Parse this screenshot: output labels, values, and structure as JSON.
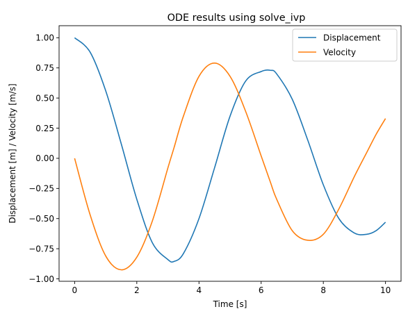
{
  "chart_data": {
    "type": "line",
    "title": "ODE results using solve_ivp",
    "xlabel": "Time [s]",
    "ylabel": "Displacement [m] / Velocity [m/s]",
    "xlim": [
      -0.5,
      10.5
    ],
    "ylim": [
      -1.02,
      1.1
    ],
    "xticks": [
      0,
      2,
      4,
      6,
      8,
      10
    ],
    "xtick_labels": [
      "0",
      "2",
      "4",
      "6",
      "8",
      "10"
    ],
    "yticks": [
      1.0,
      0.75,
      0.5,
      0.25,
      0.0,
      -0.25,
      -0.5,
      -0.75,
      -1.0
    ],
    "ytick_labels": [
      "1.00",
      "0.75",
      "0.50",
      "0.25",
      "0.00",
      "−0.25",
      "−0.50",
      "−0.75",
      "−1.00"
    ],
    "grid": false,
    "legend_position": "top-right",
    "x": [
      0,
      0.5,
      1,
      1.5,
      2,
      2.5,
      3,
      3.2,
      3.5,
      4,
      4.5,
      5,
      5.5,
      6,
      6.3,
      6.5,
      7,
      7.5,
      8,
      8.5,
      9,
      9.4,
      9.7,
      10
    ],
    "series": [
      {
        "name": "Displacement",
        "color": "#1f77b4",
        "values": [
          1.0,
          0.88,
          0.56,
          0.12,
          -0.34,
          -0.7,
          -0.84,
          -0.855,
          -0.79,
          -0.5,
          -0.08,
          0.35,
          0.64,
          0.72,
          0.73,
          0.7,
          0.49,
          0.15,
          -0.22,
          -0.5,
          -0.62,
          -0.63,
          -0.6,
          -0.53
        ]
      },
      {
        "name": "Velocity",
        "color": "#ff7f0e",
        "values": [
          0.0,
          -0.47,
          -0.81,
          -0.925,
          -0.82,
          -0.52,
          -0.08,
          0.09,
          0.35,
          0.68,
          0.79,
          0.68,
          0.39,
          0.02,
          -0.2,
          -0.34,
          -0.6,
          -0.68,
          -0.63,
          -0.42,
          -0.15,
          0.05,
          0.2,
          0.33
        ]
      }
    ]
  }
}
